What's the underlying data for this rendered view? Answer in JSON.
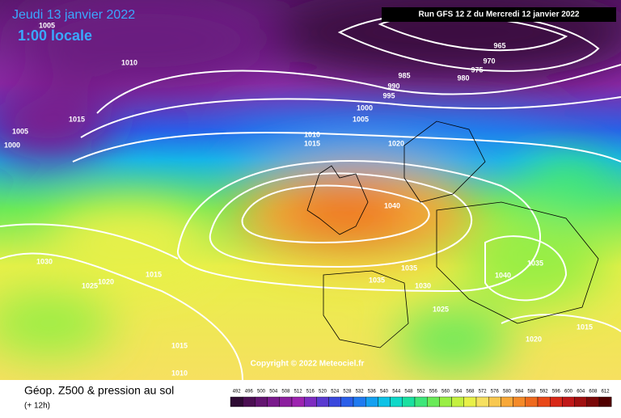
{
  "header": {
    "date": "Jeudi 13 janvier 2022",
    "time": "1:00 locale",
    "run": "Run GFS 12 Z du Mercredi 12 janvier 2022"
  },
  "isobar_labels": [
    "1005",
    "1010",
    "1015",
    "1005",
    "1000",
    "965",
    "970",
    "975",
    "980",
    "985",
    "990",
    "995",
    "1000",
    "1005",
    "1010",
    "1015",
    "1020",
    "1040",
    "1035",
    "1035",
    "1030",
    "1040",
    "1035",
    "1025",
    "1020",
    "1015",
    "1030",
    "1025",
    "1020",
    "1015",
    "1015",
    "1010"
  ],
  "copyright": "Copyright © 2022 Meteociel.fr",
  "footer": {
    "title": "Géop. Z500 & pression au sol",
    "lead": "(+ 12h)"
  },
  "legend": {
    "values": [
      492,
      496,
      500,
      504,
      508,
      512,
      516,
      520,
      524,
      528,
      532,
      536,
      540,
      544,
      548,
      552,
      556,
      560,
      564,
      568,
      572,
      576,
      580,
      584,
      588,
      592,
      596,
      600,
      604,
      608,
      612
    ],
    "colors": [
      "#2e0b33",
      "#4b0f52",
      "#631570",
      "#7a1a8c",
      "#8c1f9e",
      "#9d24b0",
      "#7e2cc0",
      "#5a3ad0",
      "#3a48dc",
      "#2a5ee8",
      "#1f7af0",
      "#14a0f0",
      "#0ec2e6",
      "#10d8c8",
      "#1be0a0",
      "#3ee67a",
      "#6aea58",
      "#99ee44",
      "#c4f040",
      "#e8f048",
      "#f6e060",
      "#f8c850",
      "#f8a838",
      "#f48a28",
      "#ee6a1e",
      "#e84818",
      "#d82818",
      "#c01818",
      "#a01010",
      "#7a0808",
      "#500000"
    ]
  }
}
